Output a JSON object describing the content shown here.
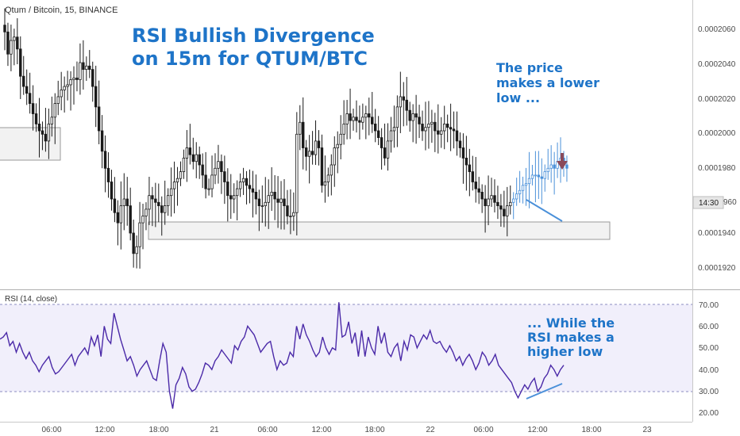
{
  "colors": {
    "candle": "#1a1a1a",
    "projection": "#4a90d9",
    "accent_blue": "#1e74c8",
    "rsi_line": "#4b2aa8",
    "rsi_band": "#f1effb",
    "arrow": "#8a4a5a",
    "zone_fill": "#f2f2f2",
    "zone_stroke": "#9a9a9a"
  },
  "header": {
    "symbol_label": "Qtum / Bitcoin, 15, BINANCE"
  },
  "annotations": {
    "title_line1": "RSI Bullish Divergence",
    "title_line2": "on 15m for QTUM/BTC",
    "price_note_line1": "The price",
    "price_note_line2": "makes a lower",
    "price_note_line3": "low ...",
    "rsi_note_line1": "... While the",
    "rsi_note_line2": "RSI makes a",
    "rsi_note_line3": "higher low"
  },
  "price_axis": {
    "ticks": [
      "0.0002060",
      "0.0002040",
      "0.0002020",
      "0.0002000",
      "0.0001980",
      "0.0001960",
      "0.0001940",
      "0.0001920"
    ],
    "visible_ticks": [
      "0.0002060",
      "0.0002040",
      "0.0002020",
      "0.0002000",
      "0.0001980",
      "0.0001940",
      "0.0001920"
    ],
    "countdown_label": "14:30",
    "partial_tick_label": "960"
  },
  "rsi_panel": {
    "label": "RSI (14, close)",
    "ticks": [
      "70.00",
      "60.00",
      "50.00",
      "40.00",
      "30.00",
      "20.00"
    ]
  },
  "time_axis": {
    "labels": [
      "06:00",
      "12:00",
      "18:00",
      "21",
      "06:00",
      "12:00",
      "18:00",
      "22",
      "06:00",
      "12:00",
      "18:00",
      "23"
    ]
  },
  "chart_data": [
    {
      "type": "candlestick",
      "title": "Qtum / Bitcoin, 15, BINANCE",
      "ylim": [
        0.000191,
        0.0002075
      ],
      "grid": false,
      "candle_count": 179,
      "x_tick_labels": [
        "06:00",
        "12:00",
        "18:00",
        "21",
        "06:00",
        "12:00",
        "18:00",
        "22",
        "06:00",
        "12:00",
        "18:00",
        "23"
      ],
      "close": [
        0.0002058,
        0.0002045,
        0.0002053,
        0.0002055,
        0.0002048,
        0.0002032,
        0.0002026,
        0.0002022,
        0.0002016,
        0.000201,
        0.0002004,
        0.0002,
        0.0001998,
        0.0001994,
        0.0002004,
        0.0002008,
        0.0002016,
        0.000202,
        0.0002024,
        0.0002026,
        0.0002027,
        0.000203,
        0.0002031,
        0.000203,
        0.000204,
        0.0002036,
        0.0002038,
        0.0002036,
        0.0002026,
        0.0002014,
        0.0002,
        0.0001988,
        0.0001978,
        0.000197,
        0.000196,
        0.0001952,
        0.0001946,
        0.0001956,
        0.000196,
        0.0001956,
        0.000194,
        0.0001928,
        0.0001932,
        0.0001946,
        0.000195,
        0.0001954,
        0.0001962,
        0.000196,
        0.0001958,
        0.0001956,
        0.0001952,
        0.0001956,
        0.0001962,
        0.0001966,
        0.000197,
        0.0001972,
        0.0001976,
        0.0001984,
        0.000199,
        0.0001986,
        0.0001982,
        0.0001986,
        0.000198,
        0.0001974,
        0.0001966,
        0.0001966,
        0.0001974,
        0.0001978,
        0.0001982,
        0.0001976,
        0.000197,
        0.0001962,
        0.000196,
        0.0001962,
        0.0001966,
        0.000197,
        0.0001972,
        0.0001968,
        0.0001966,
        0.0001964,
        0.000196,
        0.0001956,
        0.0001956,
        0.0001958,
        0.0001962,
        0.0001964,
        0.000196,
        0.0001958,
        0.000196,
        0.0001956,
        0.000195,
        0.000195,
        0.0001952,
        0.0001998,
        0.0002005,
        0.000199,
        0.0001985,
        0.0001988,
        0.0001986,
        0.0001994,
        0.000199,
        0.0001968,
        0.000197,
        0.0001974,
        0.000198,
        0.000199,
        0.0001992,
        0.0001998,
        0.0002004,
        0.000201,
        0.0002006,
        0.0002008,
        0.0002006,
        0.0002005,
        0.0002008,
        0.000201,
        0.0002008,
        0.0002004,
        0.0002,
        0.0001996,
        0.000199,
        0.0001984,
        0.0001994,
        0.0002,
        0.0002002,
        0.0002014,
        0.000202,
        0.0002018,
        0.0002012,
        0.0002006,
        0.000201,
        0.0002008,
        0.0002004,
        0.0002,
        0.0002002,
        0.0002004,
        0.0002005,
        0.0002,
        0.0001998,
        0.0002,
        0.0002004,
        0.0002002,
        0.0002001,
        0.0002,
        0.0001994,
        0.000199,
        0.0001984,
        0.000198,
        0.0001976,
        0.000197,
        0.0001966,
        0.0001964,
        0.000196,
        0.0001956,
        0.000196,
        0.0001962,
        0.0001958,
        0.0001956,
        0.0001954,
        0.000195,
        0.0001956,
        0.0001958,
        0.000196,
        0.0001963,
        0.0001965,
        0.0001968,
        0.0001969,
        0.0001972,
        0.0001974,
        0.0001974,
        0.0001973,
        0.0001972,
        0.0001976,
        0.0001978,
        0.000198,
        0.0001978,
        0.0001982,
        0.0001984,
        0.000198,
        0.0001978
      ],
      "projected_from_index": 162,
      "zones": [
        {
          "name": "left-box",
          "price_range": [
            0.0001982,
            0.0002002
          ]
        },
        {
          "name": "support-box",
          "price_range": [
            0.0001937,
            0.0001948
          ]
        }
      ]
    },
    {
      "type": "line",
      "title": "RSI (14, close)",
      "ylim": [
        17.5,
        72
      ],
      "bands": [
        30,
        70
      ],
      "grid": false,
      "x_tick_labels": [
        "06:00",
        "12:00",
        "18:00",
        "21",
        "06:00",
        "12:00",
        "18:00",
        "22",
        "06:00",
        "12:00",
        "18:00",
        "23"
      ],
      "values": [
        54,
        55,
        57,
        51,
        53,
        48,
        52,
        48,
        45,
        48,
        44,
        42,
        39,
        42,
        44,
        46,
        41,
        38,
        39,
        41,
        43,
        45,
        47,
        42,
        46,
        48,
        50,
        47,
        55,
        51,
        56,
        46,
        60,
        54,
        52,
        66,
        60,
        54,
        49,
        44,
        46,
        42,
        37,
        40,
        42,
        44,
        40,
        36,
        35,
        44,
        52,
        48,
        30,
        22,
        33,
        36,
        41,
        38,
        32,
        30,
        31,
        34,
        38,
        43,
        42,
        40,
        44,
        46,
        49,
        47,
        45,
        43,
        51,
        49,
        53,
        55,
        60,
        58,
        56,
        52,
        48,
        50,
        52,
        53,
        46,
        40,
        44,
        42,
        43,
        48,
        46,
        60,
        54,
        61,
        56,
        53,
        49,
        46,
        48,
        55,
        50,
        47,
        50,
        49,
        71,
        55,
        56,
        62,
        52,
        57,
        46,
        58,
        46,
        55,
        50,
        47,
        60,
        52,
        57,
        48,
        46,
        50,
        52,
        44,
        53,
        49,
        56,
        55,
        50,
        53,
        56,
        54,
        58,
        53,
        52,
        53,
        50,
        48,
        51,
        48,
        44,
        46,
        42,
        45,
        47,
        44,
        40,
        43,
        48,
        46,
        42,
        44,
        47,
        42,
        40,
        38,
        36,
        34,
        30,
        27,
        30,
        33,
        31,
        34,
        36,
        30,
        32,
        36,
        38,
        42,
        40,
        37,
        40,
        42
      ],
      "note": "Price makes a lower low while RSI makes a higher low"
    }
  ]
}
